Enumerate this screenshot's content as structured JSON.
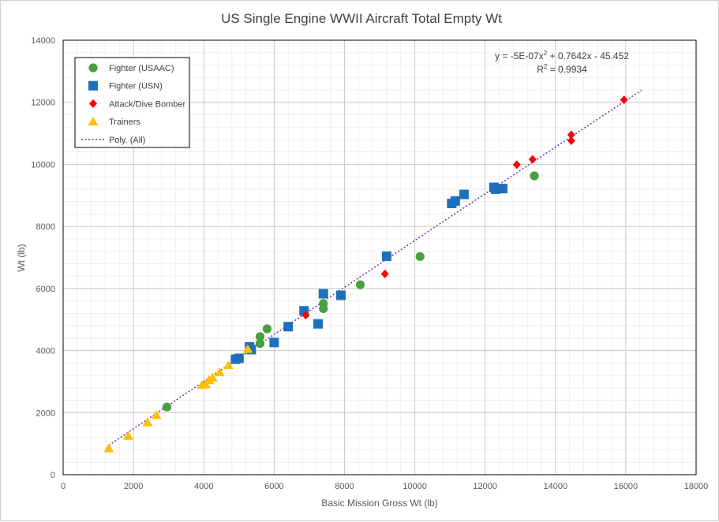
{
  "chart_data": {
    "type": "scatter",
    "title": "US Single Engine WWII Aircraft Total Empty Wt",
    "xlabel": "Basic Mission Gross Wt (lb)",
    "ylabel": "Wt (lb)",
    "xlim": [
      0,
      18000
    ],
    "ylim": [
      0,
      14000
    ],
    "xticks": [
      "0",
      "2000",
      "4000",
      "6000",
      "8000",
      "10000",
      "12000",
      "14000",
      "16000",
      "18000"
    ],
    "yticks": [
      "0",
      "2000",
      "4000",
      "6000",
      "8000",
      "10000",
      "12000",
      "14000"
    ],
    "grid": true,
    "legend_position": "top-left",
    "series": [
      {
        "name": "Fighter (USAAC)",
        "marker": "circle",
        "color": "#4aa03f",
        "points": [
          [
            2950,
            2180
          ],
          [
            5600,
            4230
          ],
          [
            5600,
            4450
          ],
          [
            5800,
            4700
          ],
          [
            7400,
            5350
          ],
          [
            7400,
            5520
          ],
          [
            8450,
            6120
          ],
          [
            10150,
            7030
          ],
          [
            13400,
            9630
          ]
        ]
      },
      {
        "name": "Fighter (USN)",
        "marker": "square",
        "color": "#1f6fbf",
        "points": [
          [
            4900,
            3720
          ],
          [
            5000,
            3750
          ],
          [
            5300,
            4120
          ],
          [
            5350,
            4030
          ],
          [
            6000,
            4260
          ],
          [
            6400,
            4770
          ],
          [
            6850,
            5280
          ],
          [
            7250,
            4860
          ],
          [
            7400,
            5830
          ],
          [
            7900,
            5780
          ],
          [
            9200,
            7040
          ],
          [
            11050,
            8740
          ],
          [
            11150,
            8820
          ],
          [
            11400,
            9030
          ],
          [
            12250,
            9260
          ],
          [
            12300,
            9200
          ],
          [
            12500,
            9220
          ]
        ]
      },
      {
        "name": "Attack/Dive Bomber",
        "marker": "diamond",
        "color": "#ff0000",
        "points": [
          [
            6900,
            5140
          ],
          [
            9150,
            6470
          ],
          [
            12900,
            9990
          ],
          [
            13350,
            10160
          ],
          [
            14450,
            10950
          ],
          [
            14450,
            10760
          ],
          [
            15950,
            12080
          ]
        ]
      },
      {
        "name": "Trainers",
        "marker": "triangle",
        "color": "#ffc000",
        "points": [
          [
            1300,
            850
          ],
          [
            1850,
            1250
          ],
          [
            2400,
            1690
          ],
          [
            2650,
            1920
          ],
          [
            3950,
            2890
          ],
          [
            4050,
            2920
          ],
          [
            4150,
            3050
          ],
          [
            4250,
            3130
          ],
          [
            4450,
            3300
          ],
          [
            4700,
            3530
          ],
          [
            5250,
            4050
          ]
        ]
      }
    ],
    "trendline": {
      "name": "Poly. (All)",
      "color": "#7030a0",
      "style": "dotted",
      "x_range": [
        1300,
        16450
      ],
      "coefficients": {
        "a": -5e-07,
        "b": 0.7642,
        "c": -45.452
      }
    },
    "equation": {
      "line1": "y = -5E-07x",
      "line1_sup": "2",
      "line1_rest": " + 0.7642x - 45.452",
      "line2": "R",
      "line2_sup": "2",
      "line2_rest": " = 0.9934"
    }
  }
}
